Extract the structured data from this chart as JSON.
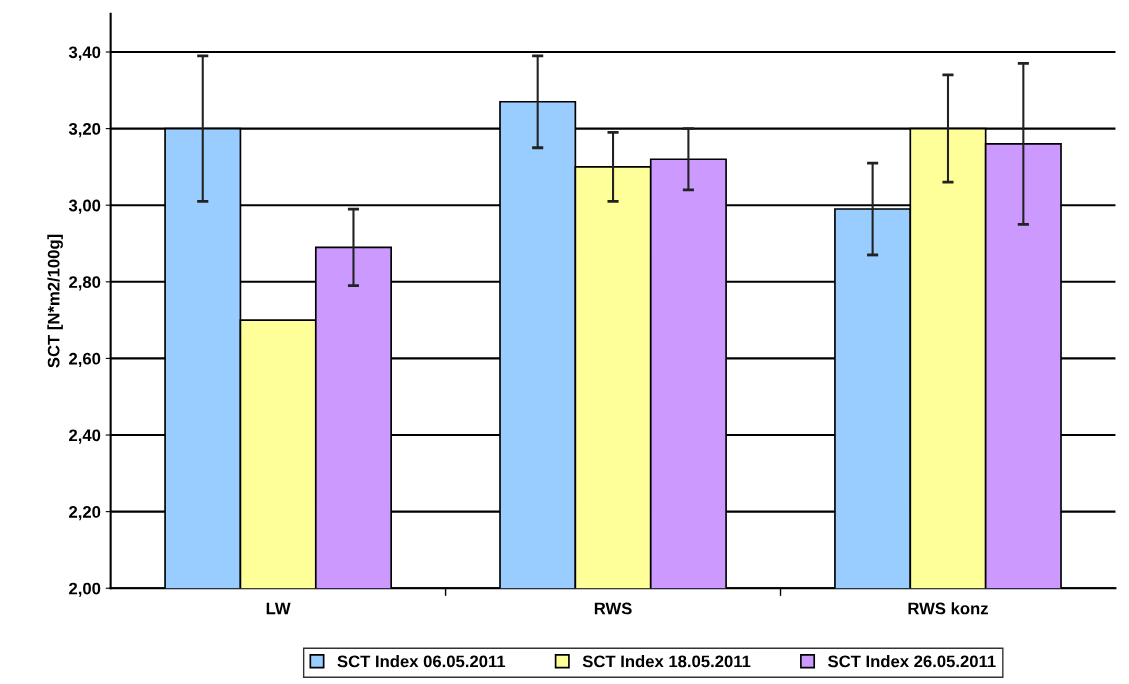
{
  "chart_data": {
    "type": "bar",
    "ylabel": "SCT [N*m2/100g]",
    "categories": [
      "LW",
      "RWS",
      "RWS konz"
    ],
    "series": [
      {
        "name": "SCT Index 06.05.2011",
        "color": "#99ccff",
        "values": [
          3.2,
          3.27,
          2.99
        ],
        "errors": [
          0.19,
          0.12,
          0.12
        ]
      },
      {
        "name": "SCT Index 18.05.2011",
        "color": "#ffff99",
        "values": [
          2.7,
          3.1,
          3.2
        ],
        "errors": [
          null,
          0.09,
          0.14
        ]
      },
      {
        "name": "SCT Index 26.05.2011",
        "color": "#cc99ff",
        "values": [
          2.89,
          3.12,
          3.16
        ],
        "errors": [
          0.1,
          0.08,
          0.21
        ]
      }
    ],
    "ylim": [
      2.0,
      3.5
    ],
    "yticks": [
      {
        "value": 2.0,
        "label": "2,00"
      },
      {
        "value": 2.2,
        "label": "2,20"
      },
      {
        "value": 2.4,
        "label": "2,40"
      },
      {
        "value": 2.6,
        "label": "2,60"
      },
      {
        "value": 2.8,
        "label": "2,80"
      },
      {
        "value": 3.0,
        "label": "3,00"
      },
      {
        "value": 3.2,
        "label": "3,20"
      },
      {
        "value": 3.4,
        "label": "3,40"
      }
    ],
    "grid": "y",
    "legend": "bottom"
  }
}
